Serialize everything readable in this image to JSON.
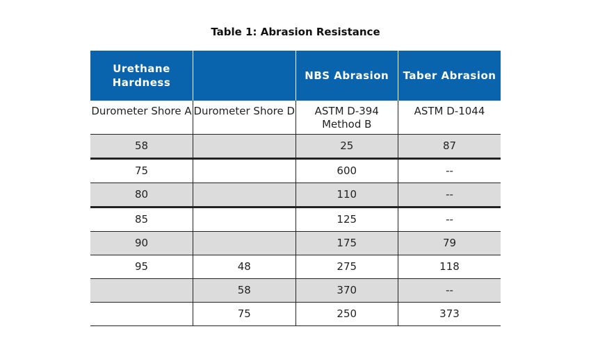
{
  "caption": "Table 1: Abrasion Resistance",
  "headers": [
    "Urethane Hardness",
    "",
    "NBS Abrasion",
    "Taber Abrasion"
  ],
  "subheaders": [
    "Durometer Shore A",
    "Durometer Shore D",
    "ASTM D-394 Method B",
    "ASTM D-1044"
  ],
  "rows": [
    [
      "58",
      "",
      "25",
      "87"
    ],
    [
      "75",
      "",
      "600",
      "--"
    ],
    [
      "80",
      "",
      "110",
      "--"
    ],
    [
      "85",
      "",
      "125",
      "--"
    ],
    [
      "90",
      "",
      "175",
      "79"
    ],
    [
      "95",
      "48",
      "275",
      "118"
    ],
    [
      "",
      "58",
      "370",
      "--"
    ],
    [
      "",
      "75",
      "250",
      "373"
    ]
  ],
  "colors": {
    "header_bg": "#0a64ad",
    "header_text": "#ffffff",
    "shaded_row": "#dcdcdc"
  }
}
